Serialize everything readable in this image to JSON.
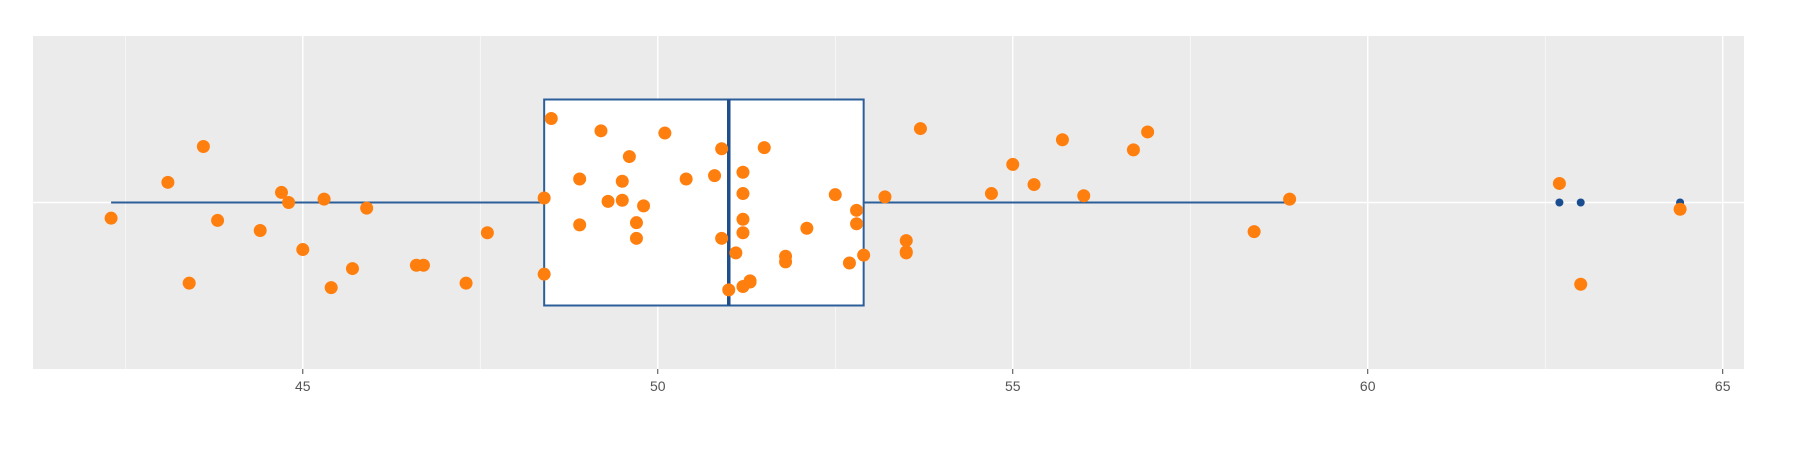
{
  "chart_data": {
    "type": "box",
    "orientation": "horizontal",
    "title": "",
    "xlabel": "",
    "ylabel": "",
    "xlim": [
      41.2,
      65.3
    ],
    "x_ticks": [
      45,
      50,
      55,
      60,
      65
    ],
    "grid": true,
    "legend": "none",
    "box": {
      "whisker_low": 42.3,
      "q1": 48.4,
      "median": 51.0,
      "q3": 52.9,
      "whisker_high": 58.9,
      "outliers": [
        62.7,
        63.0,
        64.4
      ]
    },
    "points": {
      "x": [
        42.3,
        43.1,
        43.4,
        43.6,
        43.8,
        44.4,
        44.7,
        44.8,
        45.0,
        45.3,
        45.4,
        45.7,
        45.9,
        46.6,
        46.7,
        47.3,
        47.6,
        48.4,
        48.4,
        48.5,
        48.9,
        48.9,
        49.2,
        49.3,
        49.5,
        49.5,
        49.6,
        49.7,
        49.7,
        49.8,
        50.1,
        50.4,
        50.8,
        50.9,
        50.9,
        51.0,
        51.1,
        51.2,
        51.2,
        51.2,
        51.2,
        51.2,
        51.3,
        51.3,
        51.5,
        51.8,
        51.8,
        52.1,
        52.5,
        52.7,
        52.8,
        52.8,
        52.9,
        53.2,
        53.5,
        53.5,
        53.5,
        53.7,
        54.7,
        55.0,
        55.3,
        55.7,
        56.0,
        56.7,
        56.9,
        58.4,
        58.9,
        62.7,
        63.0,
        64.4
      ],
      "y": [
        -0.14,
        0.18,
        -0.72,
        0.5,
        -0.16,
        -0.25,
        0.09,
        0.0,
        -0.42,
        0.03,
        -0.76,
        -0.59,
        -0.05,
        -0.56,
        -0.56,
        -0.72,
        -0.27,
        0.04,
        -0.64,
        0.75,
        -0.2,
        0.21,
        0.64,
        0.01,
        0.02,
        0.19,
        0.41,
        -0.18,
        -0.32,
        -0.03,
        0.62,
        0.21,
        0.24,
        -0.32,
        0.48,
        -0.78,
        -0.45,
        0.27,
        0.08,
        -0.15,
        -0.27,
        -0.75,
        -0.71,
        -0.7,
        0.49,
        -0.48,
        -0.53,
        -0.23,
        0.07,
        -0.54,
        -0.07,
        -0.19,
        -0.47,
        0.05,
        -0.34,
        -0.44,
        -0.45,
        0.66,
        0.08,
        0.34,
        0.16,
        0.56,
        0.06,
        0.47,
        0.63,
        -0.26,
        0.03,
        0.17,
        -0.73,
        -0.06
      ]
    },
    "colors": {
      "panel": "#ebebeb",
      "grid": "#ffffff",
      "box_line": "#2c5f9a",
      "box_fill": "#ffffff",
      "median_line": "#1f4e8a",
      "outlier": "#1a4d8f",
      "jitter_point": "#ff7f0e"
    }
  }
}
